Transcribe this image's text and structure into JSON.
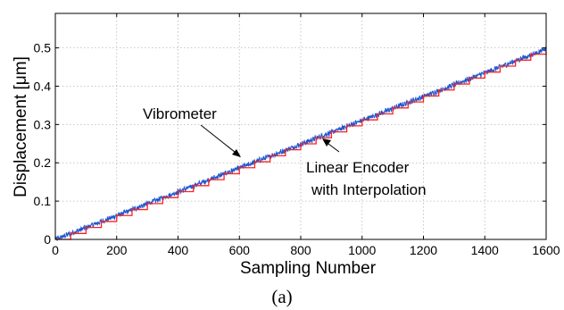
{
  "chart_data": {
    "type": "line",
    "xlabel": "Sampling Number",
    "ylabel": "Displacement [μm]",
    "xlim": [
      0,
      1600
    ],
    "ylim": [
      0,
      0.59
    ],
    "xticks": [
      0,
      200,
      400,
      600,
      800,
      1000,
      1200,
      1400,
      1600
    ],
    "yticks": [
      0,
      0.1,
      0.2,
      0.3,
      0.4,
      0.5
    ],
    "ytick_labels": [
      "0",
      "0.1",
      "0.2",
      "0.3",
      "0.4",
      "0.5"
    ],
    "grid": true,
    "series": [
      {
        "name": "Vibrometer",
        "color": "#2255cc",
        "style": "noisy-line",
        "x": [
          0,
          1600
        ],
        "y": [
          0,
          0.497
        ]
      },
      {
        "name": "Linear Encoder with Interpolation",
        "color": "#ff2020",
        "style": "step",
        "x": [
          0,
          1600
        ],
        "y": [
          0,
          0.49
        ],
        "step_x": 50,
        "step_y": 0.0156
      }
    ],
    "annotations": [
      {
        "text": "Vibrometer",
        "points_to": [
          620,
          0.183
        ]
      },
      {
        "lines": [
          "Linear Encoder",
          "with Interpolation"
        ],
        "points_to": [
          855,
          0.262
        ]
      }
    ]
  },
  "caption": "(a)"
}
